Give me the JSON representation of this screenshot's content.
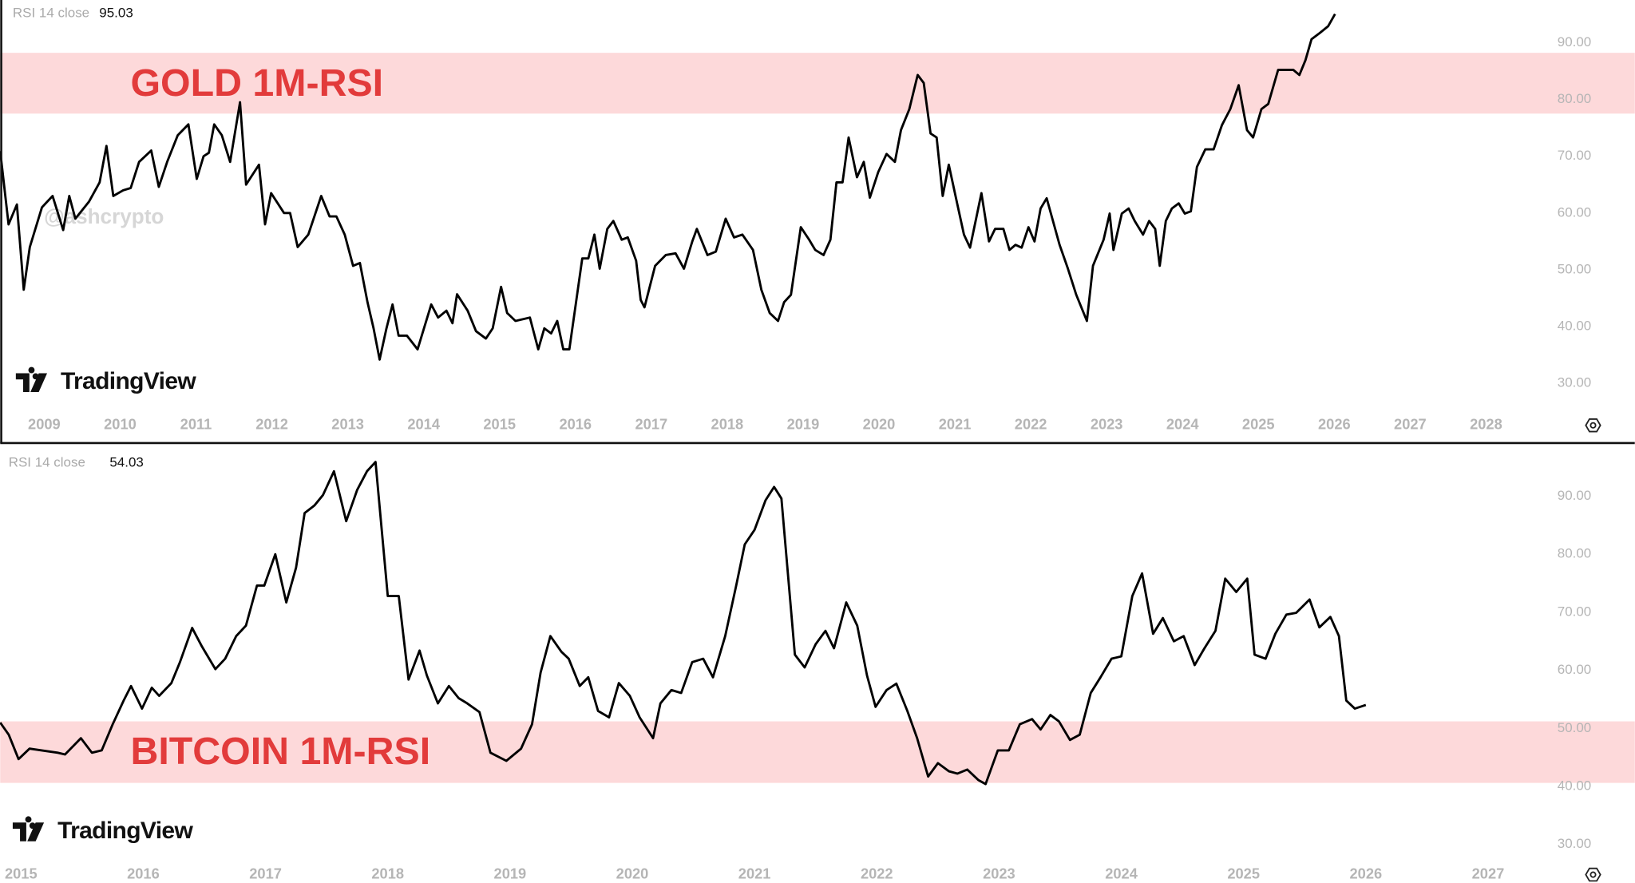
{
  "chart_data": [
    {
      "type": "line",
      "indicator": "RSI 14 close",
      "last_value": 95.03,
      "annotation": "GOLD 1M-RSI",
      "watermark": "@ashcrypto",
      "brand": "TradingView",
      "color": "#000000",
      "band": {
        "range": [
          77.5,
          88.2
        ],
        "color": "#fdd9da"
      },
      "xlim": [
        2008.42,
        2029.96
      ],
      "ylim": [
        19.5,
        97.5
      ],
      "xticks": [
        2009,
        2010,
        2011,
        2012,
        2013,
        2014,
        2015,
        2016,
        2017,
        2018,
        2019,
        2020,
        2021,
        2022,
        2023,
        2024,
        2025,
        2026,
        2027,
        2028
      ],
      "yticks": [
        {
          "value": 30,
          "label": "30.00"
        },
        {
          "value": 40,
          "label": "40.00"
        },
        {
          "value": 50,
          "label": "50.00"
        },
        {
          "value": 60,
          "label": "60.00"
        },
        {
          "value": 70,
          "label": "70.00"
        },
        {
          "value": 80,
          "label": "80.00"
        },
        {
          "value": 90,
          "label": "90.00"
        }
      ],
      "x": [
        2008.42,
        2008.53,
        2008.64,
        2008.73,
        2008.81,
        2008.97,
        2009.11,
        2009.25,
        2009.33,
        2009.41,
        2009.59,
        2009.73,
        2009.82,
        2009.91,
        2010.04,
        2010.14,
        2010.25,
        2010.41,
        2010.51,
        2010.62,
        2010.76,
        2010.9,
        2011.01,
        2011.1,
        2011.17,
        2011.24,
        2011.34,
        2011.45,
        2011.58,
        2011.66,
        2011.83,
        2011.91,
        2011.99,
        2012.16,
        2012.24,
        2012.34,
        2012.48,
        2012.65,
        2012.76,
        2012.85,
        2012.96,
        2013.07,
        2013.16,
        2013.26,
        2013.34,
        2013.42,
        2013.51,
        2013.59,
        2013.67,
        2013.78,
        2013.92,
        2014.1,
        2014.19,
        2014.3,
        2014.38,
        2014.44,
        2014.58,
        2014.69,
        2014.82,
        2014.91,
        2015.02,
        2015.1,
        2015.21,
        2015.4,
        2015.51,
        2015.59,
        2015.68,
        2015.76,
        2015.84,
        2015.92,
        2016.09,
        2016.17,
        2016.25,
        2016.32,
        2016.42,
        2016.5,
        2016.61,
        2016.69,
        2016.8,
        2016.86,
        2016.91,
        2017.05,
        2017.19,
        2017.32,
        2017.43,
        2017.54,
        2017.6,
        2017.74,
        2017.85,
        2017.98,
        2018.09,
        2018.2,
        2018.34,
        2018.45,
        2018.56,
        2018.67,
        2018.75,
        2018.84,
        2018.97,
        2019.08,
        2019.16,
        2019.27,
        2019.36,
        2019.44,
        2019.52,
        2019.6,
        2019.71,
        2019.8,
        2019.88,
        2019.99,
        2020.1,
        2020.21,
        2020.29,
        2020.4,
        2020.51,
        2020.59,
        2020.68,
        2020.76,
        2020.84,
        2020.92,
        2021.03,
        2021.12,
        2021.2,
        2021.28,
        2021.35,
        2021.45,
        2021.53,
        2021.64,
        2021.72,
        2021.8,
        2021.88,
        2021.97,
        2022.05,
        2022.13,
        2022.21,
        2022.38,
        2022.49,
        2022.6,
        2022.74,
        2022.82,
        2022.96,
        2023.04,
        2023.09,
        2023.2,
        2023.29,
        2023.37,
        2023.48,
        2023.56,
        2023.64,
        2023.7,
        2023.78,
        2023.86,
        2023.95,
        2024.03,
        2024.11,
        2024.19,
        2024.3,
        2024.41,
        2024.52,
        2024.63,
        2024.74,
        2024.85,
        2024.93,
        2025.04,
        2025.13,
        2025.26,
        2025.35,
        2025.46,
        2025.54,
        2025.62,
        2025.7,
        2025.81,
        2025.92,
        2026.01
      ],
      "values": [
        70.9,
        58,
        61.5,
        46.5,
        54,
        61,
        63,
        57,
        63,
        59,
        62,
        65.4,
        71.8,
        63,
        64,
        64.4,
        69,
        71,
        64.6,
        69,
        73.7,
        75.6,
        66,
        70,
        70.6,
        75.6,
        73.7,
        69,
        79.5,
        65,
        68.5,
        58,
        63.5,
        60,
        60,
        54,
        56.2,
        63,
        59.4,
        59.4,
        56.2,
        50.7,
        51.2,
        44.3,
        39.7,
        34.2,
        39.7,
        43.9,
        38.4,
        38.4,
        36,
        43.9,
        41.6,
        42.8,
        40.6,
        45.7,
        42.8,
        39.2,
        37.9,
        39.7,
        47,
        42.4,
        41,
        41.6,
        36,
        39.7,
        38.8,
        41,
        36,
        36,
        52,
        52,
        56.2,
        50.2,
        57.2,
        58.6,
        55.3,
        55.7,
        51.6,
        44.7,
        43.4,
        50.7,
        52.6,
        52.9,
        50.2,
        55,
        57.2,
        52.6,
        53.2,
        59,
        55.7,
        56.2,
        53.5,
        46.5,
        42.4,
        41,
        44.3,
        45.6,
        57.5,
        55.3,
        53.5,
        52.6,
        55.3,
        65.4,
        65.4,
        73.3,
        66.3,
        69,
        62.7,
        67.2,
        70.4,
        69,
        74.6,
        78.3,
        84.3,
        82.9,
        74,
        73.3,
        63,
        68.5,
        61.7,
        56.2,
        53.9,
        59,
        63.5,
        55,
        57.2,
        57.2,
        53.5,
        54.4,
        53.9,
        57.5,
        55,
        60.8,
        62.6,
        54.4,
        50.2,
        45.6,
        41,
        50.7,
        55.3,
        59.9,
        53.5,
        59.9,
        60.8,
        58.6,
        56.2,
        58.6,
        57.2,
        50.7,
        58.6,
        60.8,
        61.7,
        59.9,
        60.3,
        68.1,
        71.2,
        71.2,
        75.5,
        78.3,
        82.5,
        74.6,
        73.3,
        78.3,
        79.2,
        85.2,
        85.2,
        85.2,
        84.3,
        86.9,
        90.6,
        91.7,
        92.9,
        95.03
      ]
    },
    {
      "type": "line",
      "indicator": "RSI 14 close",
      "last_value": 54.03,
      "annotation": "BITCOIN 1M-RSI",
      "brand": "TradingView",
      "color": "#000000",
      "band": {
        "range": [
          40.6,
          51.2
        ],
        "color": "#fdd9da"
      },
      "xlim": [
        2014.83,
        2028.2
      ],
      "ylim": [
        23.35,
        98.98
      ],
      "xticks": [
        2015,
        2016,
        2017,
        2018,
        2019,
        2020,
        2021,
        2022,
        2023,
        2024,
        2025,
        2026,
        2027
      ],
      "yticks": [
        {
          "value": 30,
          "label": "30.00"
        },
        {
          "value": 40,
          "label": "40.00"
        },
        {
          "value": 50,
          "label": "50.00"
        },
        {
          "value": 60,
          "label": "60.00"
        },
        {
          "value": 70,
          "label": "70.00"
        },
        {
          "value": 80,
          "label": "80.00"
        },
        {
          "value": 90,
          "label": "90.00"
        }
      ],
      "x": [
        2014.83,
        2014.9,
        2014.98,
        2015.07,
        2015.17,
        2015.3,
        2015.36,
        2015.49,
        2015.58,
        2015.66,
        2015.75,
        2015.84,
        2015.9,
        2015.99,
        2016.07,
        2016.13,
        2016.23,
        2016.3,
        2016.4,
        2016.48,
        2016.59,
        2016.67,
        2016.76,
        2016.84,
        2016.93,
        2016.99,
        2017.08,
        2017.17,
        2017.25,
        2017.32,
        2017.4,
        2017.47,
        2017.56,
        2017.66,
        2017.75,
        2017.83,
        2017.9,
        2018.0,
        2018.09,
        2018.17,
        2018.26,
        2018.32,
        2018.41,
        2018.5,
        2018.58,
        2018.65,
        2018.75,
        2018.84,
        2018.97,
        2019.09,
        2019.18,
        2019.25,
        2019.33,
        2019.42,
        2019.48,
        2019.57,
        2019.64,
        2019.72,
        2019.81,
        2019.89,
        2019.98,
        2020.06,
        2020.17,
        2020.23,
        2020.32,
        2020.4,
        2020.49,
        2020.58,
        2020.66,
        2020.76,
        2020.85,
        2020.92,
        2021.0,
        2021.09,
        2021.16,
        2021.22,
        2021.33,
        2021.41,
        2021.5,
        2021.58,
        2021.65,
        2021.75,
        2021.84,
        2021.92,
        2021.99,
        2022.08,
        2022.16,
        2022.25,
        2022.33,
        2022.42,
        2022.5,
        2022.59,
        2022.66,
        2022.74,
        2022.83,
        2022.89,
        2022.99,
        2023.08,
        2023.17,
        2023.27,
        2023.34,
        2023.42,
        2023.49,
        2023.58,
        2023.66,
        2023.75,
        2023.83,
        2023.92,
        2024.0,
        2024.09,
        2024.17,
        2024.26,
        2024.34,
        2024.43,
        2024.51,
        2024.6,
        2024.68,
        2024.77,
        2024.85,
        2024.94,
        2025.03,
        2025.09,
        2025.18,
        2025.26,
        2025.35,
        2025.43,
        2025.54,
        2025.62,
        2025.71,
        2025.78,
        2025.84,
        2025.91,
        2026.0
      ],
      "values": [
        51,
        48.9,
        44.7,
        46.5,
        46.2,
        45.8,
        45.5,
        48.3,
        45.8,
        46.2,
        50.7,
        54.8,
        57.3,
        53.4,
        57,
        55.6,
        57.8,
        61.4,
        67.3,
        64.1,
        60.2,
        62,
        65.9,
        67.7,
        74.6,
        74.6,
        80,
        71.7,
        77.7,
        87.1,
        88.4,
        90.2,
        94.3,
        85.7,
        91.1,
        94.3,
        95.9,
        72.8,
        72.8,
        58.4,
        63.4,
        59.1,
        54.3,
        57.3,
        55.2,
        54.3,
        52.8,
        45.8,
        44.4,
        46.5,
        50.7,
        59.6,
        65.9,
        63.2,
        62,
        57.3,
        58.8,
        53,
        51.9,
        57.8,
        55.6,
        51.9,
        48.3,
        54.3,
        56.6,
        56.1,
        61.4,
        62,
        58.8,
        65.9,
        74.6,
        81.7,
        84.2,
        89.3,
        91.6,
        89.6,
        62.7,
        60.5,
        64.5,
        66.8,
        63.8,
        71.7,
        67.7,
        59.1,
        53.7,
        56.6,
        57.7,
        53,
        48.3,
        41.7,
        44,
        42.6,
        42.2,
        42.9,
        41.1,
        40.4,
        46.2,
        46.2,
        50.7,
        51.6,
        49.8,
        52.3,
        51.2,
        48,
        48.9,
        56.1,
        58.8,
        62,
        62.4,
        72.8,
        76.7,
        66.3,
        69,
        65,
        65.9,
        60.9,
        63.8,
        66.8,
        75.8,
        73.5,
        75.8,
        62.7,
        62,
        66.3,
        69.6,
        69.9,
        72.2,
        67.4,
        69.2,
        65.9,
        54.8,
        53.4,
        54.03
      ]
    }
  ]
}
